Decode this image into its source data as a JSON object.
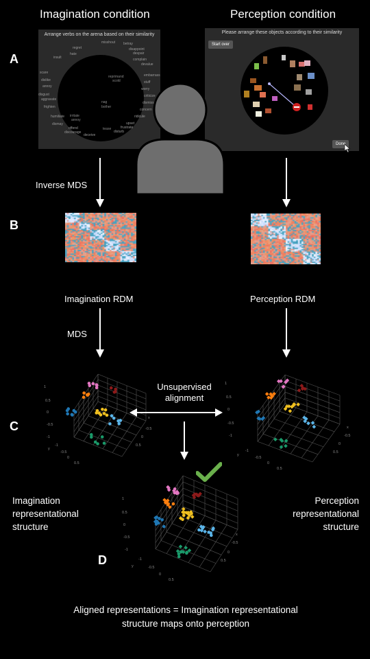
{
  "conditions": {
    "imagination": "Imagination condition",
    "perception": "Perception condition"
  },
  "letters": {
    "a": "A",
    "b": "B",
    "c": "C",
    "d": "D"
  },
  "imagination_panel": {
    "header": "Arrange verbs on the arena based on their similarity",
    "words_outside": [
      "misshout",
      "betray",
      "regret",
      "disappoint",
      "hate",
      "despair",
      "insult",
      "complain",
      "devalue",
      "scare",
      "embarrass",
      "dislike",
      "stuff",
      "annoy",
      "worry",
      "disgust",
      "criticize",
      "aggravate",
      "dismiss",
      "frighten",
      "concern",
      "humiliate",
      "ridicule",
      "dismay",
      "upset",
      "offend",
      "frustrate",
      "discourage",
      "disturb",
      "deceive"
    ],
    "words_inside": [
      "reprimand",
      "scold",
      "nag",
      "bother",
      "irritate",
      "annoy",
      "tease"
    ]
  },
  "perception_panel": {
    "header": "Please arrange these objects according to their similarity",
    "start_over": "Start over",
    "done": "Done"
  },
  "arrows": {
    "inverse_mds": "Inverse MDS",
    "mds": "MDS",
    "unsupervised": "Unsupervised alignment"
  },
  "rdm": {
    "imagination": "Imagination RDM",
    "perception": "Perception RDM"
  },
  "structures": {
    "imagination": "Imagination representational structure",
    "perception": "Perception representational structure"
  },
  "caption": "Aligned representations = Imagination representational structure maps onto perception",
  "colors": {
    "pink": "#e377c2",
    "orange": "#ff7f0e",
    "darkred": "#8c1a1a",
    "yellow": "#f0c020",
    "blue": "#1f77b4",
    "lightblue": "#5ab4e8",
    "green": "#1a9a6a",
    "check": "#6ab04c",
    "person": "#6e6e6e"
  }
}
